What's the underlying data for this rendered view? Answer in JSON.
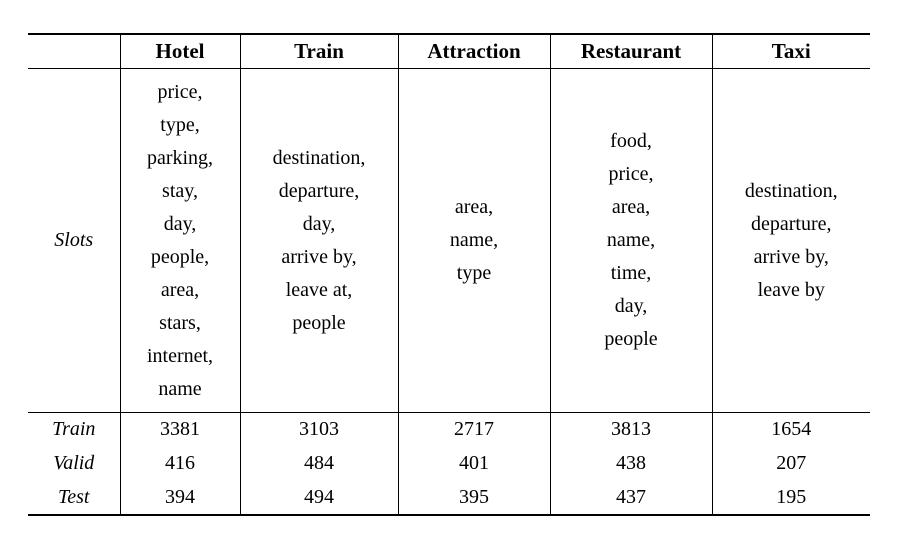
{
  "table": {
    "slots_label": "Slots",
    "columns": [
      "Hotel",
      "Train",
      "Attraction",
      "Restaurant",
      "Taxi"
    ],
    "slots": {
      "hotel": [
        "price",
        "type",
        "parking",
        "stay",
        "day",
        "people",
        "area",
        "stars",
        "internet",
        "name"
      ],
      "train": [
        "destination",
        "departure",
        "day",
        "arrive by",
        "leave at",
        "people"
      ],
      "attraction": [
        "area",
        "name",
        "type"
      ],
      "restaurant": [
        "food",
        "price",
        "area",
        "name",
        "time",
        "day",
        "people"
      ],
      "taxi": [
        "destination",
        "departure",
        "arrive by",
        "leave by"
      ]
    },
    "count_rows": [
      {
        "label": "Train",
        "values": [
          3381,
          3103,
          2717,
          3813,
          1654
        ]
      },
      {
        "label": "Valid",
        "values": [
          416,
          484,
          401,
          438,
          207
        ]
      },
      {
        "label": "Test",
        "values": [
          394,
          494,
          395,
          437,
          195
        ]
      }
    ]
  }
}
